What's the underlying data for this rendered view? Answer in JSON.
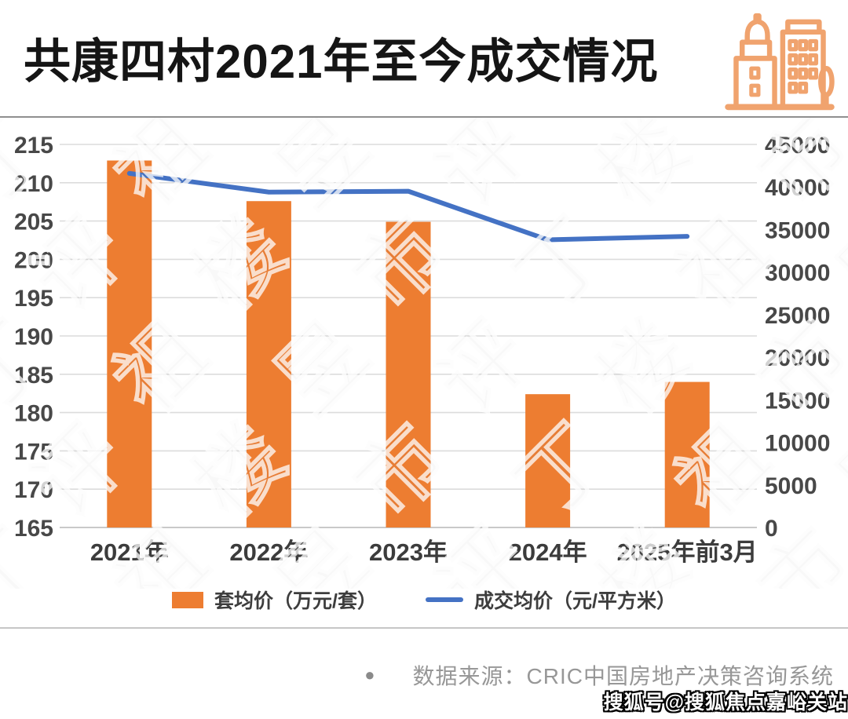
{
  "header": {
    "title": "共康四村2021年至今成交情况",
    "icon_name": "buildings-icon",
    "icon_color": "#F0A36E"
  },
  "chart_data": {
    "type": "bar",
    "subtype": "combo-bar-line-dual-axis",
    "categories": [
      "2021年",
      "2022年",
      "2023年",
      "2024年",
      "2025年前3月"
    ],
    "series": [
      {
        "name": "套均价（万元/套）",
        "render": "bar",
        "axis": "left",
        "color": "#ED7D31",
        "values": [
          212.9,
          207.6,
          204.9,
          182.4,
          184.0
        ]
      },
      {
        "name": "成交均价（元/平方米）",
        "render": "line",
        "axis": "right",
        "color": "#4472C4",
        "values": [
          41600,
          39400,
          39500,
          33800,
          34200
        ]
      }
    ],
    "left_axis": {
      "min": 165,
      "max": 215,
      "ticks": [
        215,
        210,
        205,
        200,
        195,
        190,
        185,
        180,
        175,
        170,
        165
      ]
    },
    "right_axis": {
      "min": 0,
      "max": 45000,
      "ticks": [
        45000,
        40000,
        35000,
        30000,
        25000,
        20000,
        15000,
        10000,
        5000,
        0
      ]
    },
    "grid": true,
    "legend_position": "bottom"
  },
  "legend": {
    "bar_label": "套均价（万元/套）",
    "line_label": "成交均价（元/平方米）"
  },
  "footer": {
    "bullet": "●",
    "source": "数据来源：CRIC中国房地产决策咨询系统"
  },
  "watermarks": {
    "tile_text": "丁祖昱评楼市",
    "sohu_badge": "搜狐号@搜狐焦点嘉峪关站"
  },
  "colors": {
    "bar": "#ED7D31",
    "line": "#4472C4",
    "grid": "#DCDCDC",
    "baseline": "#C9C9C9",
    "axis_text": "#484848",
    "title": "#151515"
  }
}
